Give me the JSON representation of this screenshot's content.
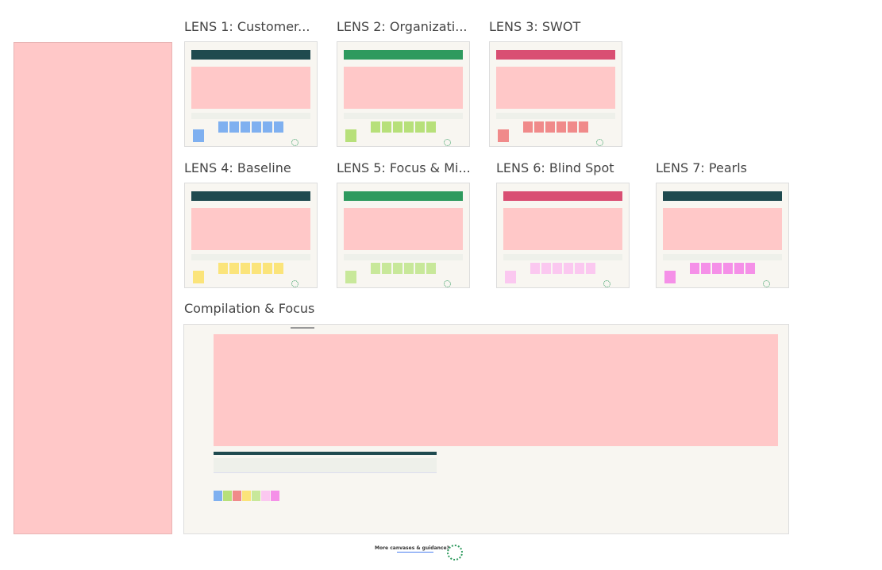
{
  "frames": [
    {
      "title": "LENS 1: Customer..."
    },
    {
      "title": "LENS 2: Organizati..."
    },
    {
      "title": "LENS 3: SWOT"
    },
    {
      "title": "LENS 4: Baseline"
    },
    {
      "title": "LENS 5: Focus & Mi..."
    },
    {
      "title": "LENS 6: Blind Spot"
    },
    {
      "title": "LENS 7: Pearls"
    }
  ],
  "compilation": {
    "title": "Compilation & Focus"
  },
  "footer": {
    "text": "More canvases & guidance?"
  }
}
